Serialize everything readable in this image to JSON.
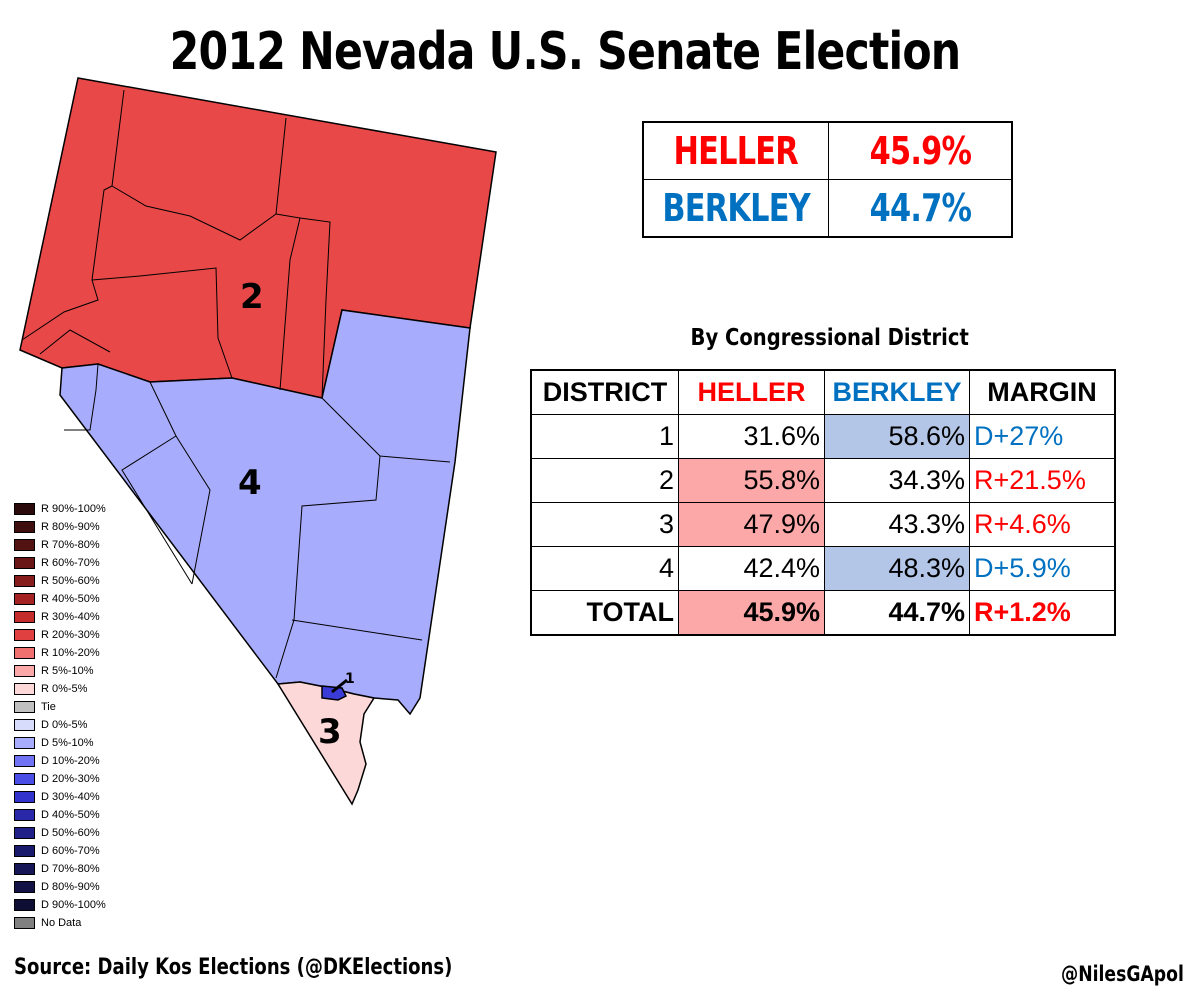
{
  "title": "2012 Nevada U.S. Senate Election",
  "statewide": [
    {
      "candidate": "HELLER",
      "pct": "45.9%",
      "color": "#ff0000"
    },
    {
      "candidate": "BERKLEY",
      "pct": "44.7%",
      "color": "#0070c0"
    }
  ],
  "district_table": {
    "subtitle": "By Congressional District",
    "headers": [
      "DISTRICT",
      "HELLER",
      "BERKLEY",
      "MARGIN"
    ],
    "rows": [
      {
        "district": "1",
        "heller": "31.6%",
        "berkley": "58.6%",
        "margin": "D+27%",
        "winner": "D"
      },
      {
        "district": "2",
        "heller": "55.8%",
        "berkley": "34.3%",
        "margin": "R+21.5%",
        "winner": "R"
      },
      {
        "district": "3",
        "heller": "47.9%",
        "berkley": "43.3%",
        "margin": "R+4.6%",
        "winner": "R"
      },
      {
        "district": "4",
        "heller": "42.4%",
        "berkley": "48.3%",
        "margin": "D+5.9%",
        "winner": "D"
      }
    ],
    "total": {
      "district": "TOTAL",
      "heller": "45.9%",
      "berkley": "44.7%",
      "margin": "R+1.2%",
      "winner": "R"
    }
  },
  "map": {
    "district_labels": [
      "2",
      "4",
      "3",
      "1"
    ],
    "district_colors": {
      "2": "#e84848",
      "4": "#a8acfc",
      "3": "#fcd8d8",
      "1": "#3b3bd8"
    }
  },
  "legend": [
    {
      "label": "R 90%-100%",
      "color": "#2a0a0a"
    },
    {
      "label": "R 80%-90%",
      "color": "#3e0e0e"
    },
    {
      "label": "R 70%-80%",
      "color": "#521212"
    },
    {
      "label": "R 60%-70%",
      "color": "#6a1616"
    },
    {
      "label": "R 50%-60%",
      "color": "#861c1c"
    },
    {
      "label": "R 40%-50%",
      "color": "#a42222"
    },
    {
      "label": "R 30%-40%",
      "color": "#c42c2c"
    },
    {
      "label": "R 20%-30%",
      "color": "#e04040"
    },
    {
      "label": "R 10%-20%",
      "color": "#f07070"
    },
    {
      "label": "R 5%-10%",
      "color": "#faa8a8"
    },
    {
      "label": "R 0%-5%",
      "color": "#fcd8d8"
    },
    {
      "label": "Tie",
      "color": "#c0c0c0"
    },
    {
      "label": "D 0%-5%",
      "color": "#d8dcfc"
    },
    {
      "label": "D 5%-10%",
      "color": "#a8acfc"
    },
    {
      "label": "D 10%-20%",
      "color": "#7074f4"
    },
    {
      "label": "D 20%-30%",
      "color": "#4a4ee6"
    },
    {
      "label": "D 30%-40%",
      "color": "#3232cc"
    },
    {
      "label": "D 40%-50%",
      "color": "#2828a8"
    },
    {
      "label": "D 50%-60%",
      "color": "#202088"
    },
    {
      "label": "D 60%-70%",
      "color": "#1a1a6c"
    },
    {
      "label": "D 70%-80%",
      "color": "#161656"
    },
    {
      "label": "D 80%-90%",
      "color": "#121244"
    },
    {
      "label": "D 90%-100%",
      "color": "#0e0e34"
    },
    {
      "label": "No Data",
      "color": "#808080"
    }
  ],
  "source": "Source: Daily Kos Elections (@DKElections)",
  "handle": "@NilesGApol",
  "colors": {
    "heller_red": "#ff0000",
    "berkley_blue": "#0070c0",
    "heller_cell": "#fca8a8",
    "berkley_cell": "#b4c6e7"
  }
}
